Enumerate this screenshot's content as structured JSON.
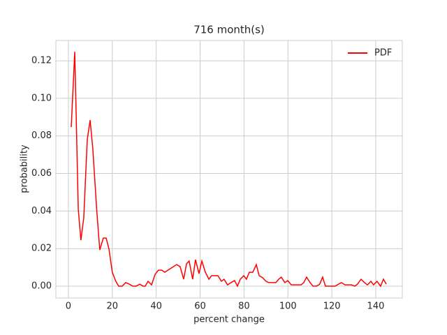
{
  "chart_data": {
    "type": "line",
    "title": "716 month(s)",
    "x_label": "percent change",
    "y_label": "probability",
    "x": [
      1.3,
      2.9,
      4.5,
      5.7,
      7.0,
      8.6,
      9.9,
      11.1,
      13.0,
      14.3,
      15.9,
      17.2,
      18.5,
      20.0,
      21.6,
      22.9,
      24.5,
      26.1,
      27.7,
      29.3,
      30.9,
      32.5,
      34.0,
      35.0,
      36.3,
      37.9,
      39.5,
      41.0,
      42.6,
      43.9,
      49.3,
      50.9,
      52.5,
      53.8,
      55.0,
      56.6,
      57.9,
      59.5,
      60.8,
      62.4,
      64.0,
      65.2,
      66.8,
      68.1,
      69.7,
      70.9,
      72.5,
      74.1,
      75.7,
      77.0,
      78.3,
      79.9,
      81.1,
      82.4,
      84.0,
      85.6,
      86.9,
      88.5,
      90.0,
      91.3,
      92.9,
      94.5,
      95.8,
      97.0,
      98.6,
      99.9,
      101.5,
      103.1,
      104.4,
      106.0,
      107.2,
      108.5,
      110.1,
      111.4,
      113.0,
      114.5,
      115.8,
      117.1,
      118.7,
      119.9,
      121.5,
      123.1,
      124.4,
      126.0,
      127.3,
      128.9,
      130.5,
      131.7,
      133.3,
      134.9,
      136.2,
      137.8,
      139.0,
      140.6,
      142.2,
      143.5,
      144.8
    ],
    "series": [
      {
        "name": "PDF",
        "color": "#ff0000",
        "values": [
          0.0847,
          0.1248,
          0.041,
          0.0245,
          0.0364,
          0.078,
          0.0884,
          0.0735,
          0.039,
          0.0193,
          0.0256,
          0.0256,
          0.0197,
          0.0074,
          0.0026,
          0,
          0,
          0.0019,
          0.0011,
          0,
          0,
          0.0011,
          0,
          0,
          0.0026,
          0.0007,
          0.0063,
          0.0085,
          0.0085,
          0.0074,
          0.0115,
          0.0104,
          0.0037,
          0.0119,
          0.0134,
          0.0037,
          0.0141,
          0.0067,
          0.0134,
          0.0074,
          0.0037,
          0.0056,
          0.0056,
          0.0056,
          0.0026,
          0.0037,
          0.0007,
          0.0019,
          0.003,
          0,
          0.0037,
          0.0056,
          0.0037,
          0.0074,
          0.0074,
          0.0115,
          0.0056,
          0.0045,
          0.0026,
          0.0019,
          0.0019,
          0.0019,
          0.0037,
          0.0048,
          0.0019,
          0.003,
          0.0007,
          0.0007,
          0.0007,
          0.0007,
          0.0019,
          0.0048,
          0.0019,
          0,
          0,
          0.0011,
          0.0048,
          0,
          0,
          0,
          0,
          0.0011,
          0.0019,
          0.0007,
          0.0007,
          0.0007,
          0,
          0.0011,
          0.0037,
          0.0019,
          0.0007,
          0.0026,
          0.0007,
          0.0026,
          0,
          0.0037,
          0.0011
        ]
      }
    ],
    "xlim": [
      -5.7,
      152.1
    ],
    "ylim": [
      -0.0063,
      0.1308
    ],
    "xticks": [
      0,
      20,
      40,
      60,
      80,
      100,
      120,
      140
    ],
    "yticks": [
      {
        "value": 0,
        "label": "0.00"
      },
      {
        "value": 0.02,
        "label": "0.02"
      },
      {
        "value": 0.04,
        "label": "0.04"
      },
      {
        "value": 0.06,
        "label": "0.06"
      },
      {
        "value": 0.08,
        "label": "0.08"
      },
      {
        "value": 0.1,
        "label": "0.10"
      },
      {
        "value": 0.12,
        "label": "0.12"
      }
    ],
    "grid": true,
    "legend": "upper right"
  }
}
